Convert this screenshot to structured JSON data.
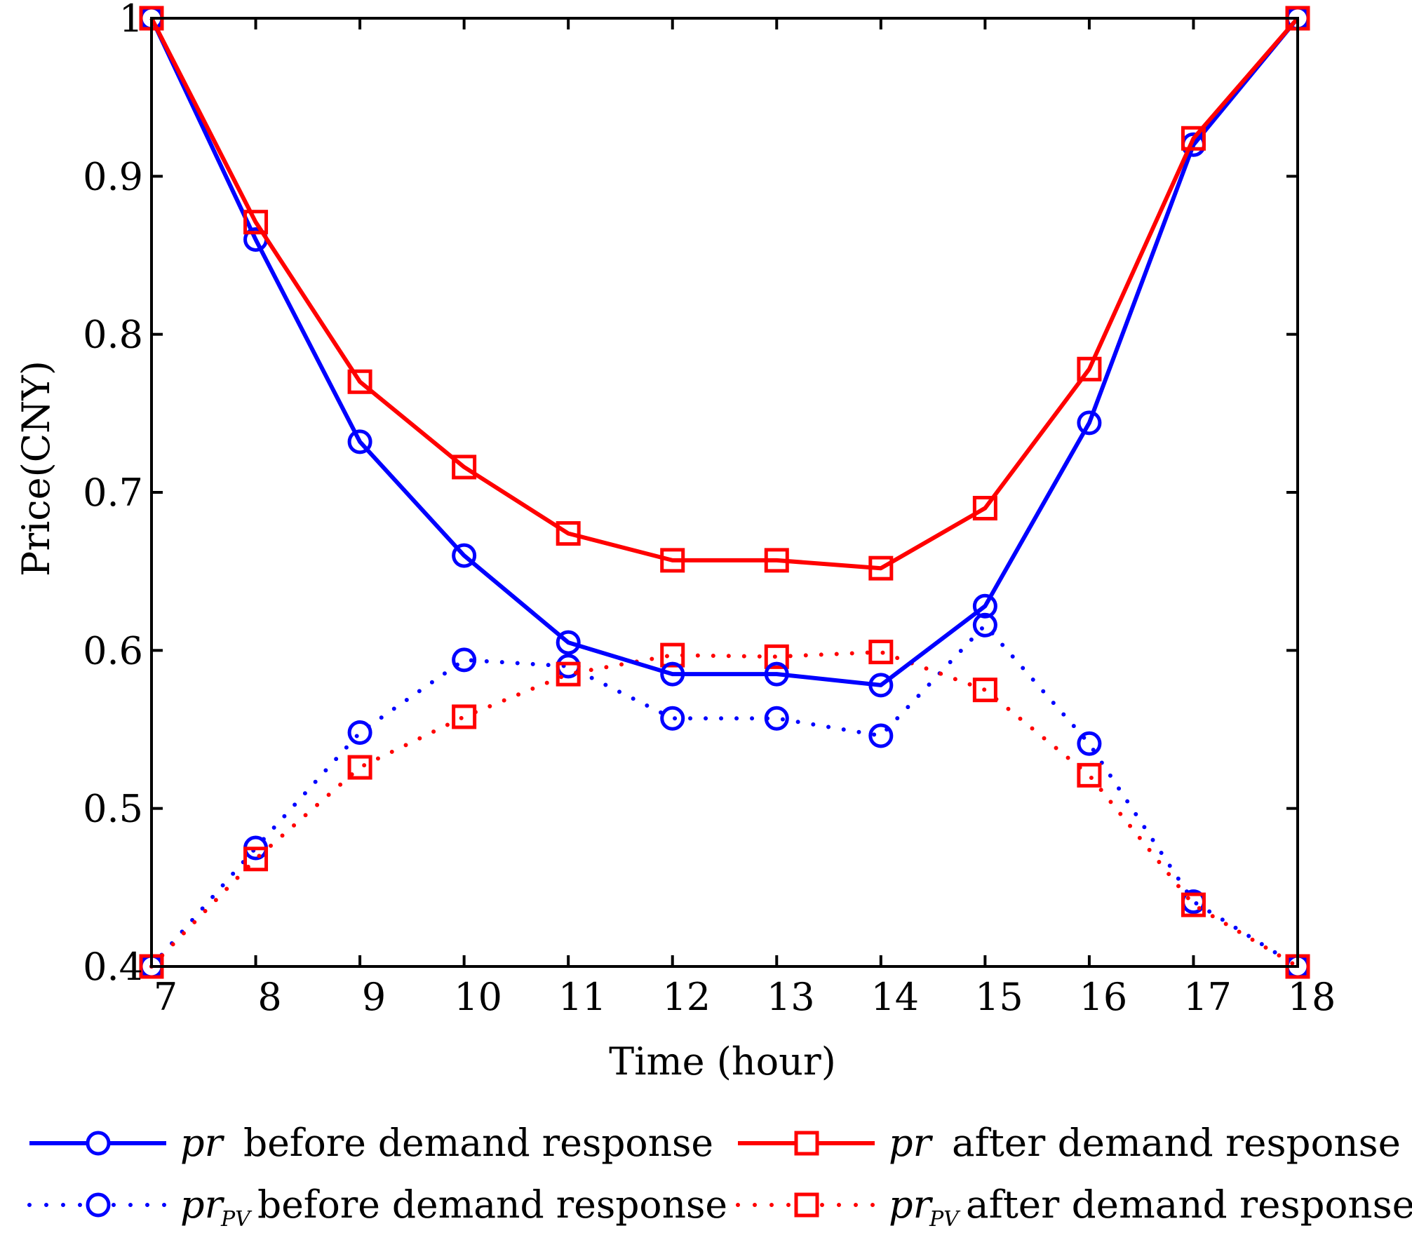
{
  "chart_data": {
    "type": "line",
    "xlabel": "Time (hour)",
    "ylabel": "Price(CNY)",
    "xlim": [
      7,
      18
    ],
    "ylim": [
      0.4,
      1.0
    ],
    "xticks": [
      7,
      8,
      9,
      10,
      11,
      12,
      13,
      14,
      15,
      16,
      17,
      18
    ],
    "xtick_labels": [
      "7",
      "8",
      "9",
      "10",
      "11",
      "12",
      "13",
      "14",
      "15",
      "16",
      "17",
      "18"
    ],
    "yticks": [
      0.4,
      0.5,
      0.6,
      0.7,
      0.8,
      0.9,
      1.0
    ],
    "ytick_labels": [
      "0.4",
      "0.5",
      "0.6",
      "0.7",
      "0.8",
      "0.9",
      "1"
    ],
    "x": [
      7,
      8,
      9,
      10,
      11,
      12,
      13,
      14,
      15,
      16,
      17,
      18
    ],
    "series": [
      {
        "name": "pr before demand response",
        "symbol": "pr",
        "subscript": "",
        "label": "before demand response",
        "color": "#0000ff",
        "line_style": "solid",
        "marker": "circle",
        "values": [
          1.0,
          0.86,
          0.732,
          0.66,
          0.605,
          0.585,
          0.585,
          0.578,
          0.628,
          0.744,
          0.92,
          1.0
        ]
      },
      {
        "name": "pr after demand response",
        "symbol": "pr",
        "subscript": "",
        "label": "after demand response",
        "color": "#ff0000",
        "line_style": "solid",
        "marker": "square",
        "values": [
          1.0,
          0.871,
          0.77,
          0.716,
          0.674,
          0.657,
          0.657,
          0.652,
          0.69,
          0.778,
          0.924,
          1.0
        ]
      },
      {
        "name": "prPV before demand response",
        "symbol": "pr",
        "subscript": "PV",
        "label": "before demand response",
        "color": "#0000ff",
        "line_style": "dotted",
        "marker": "circle",
        "values": [
          0.4,
          0.475,
          0.548,
          0.594,
          0.59,
          0.557,
          0.557,
          0.546,
          0.616,
          0.541,
          0.441,
          0.4
        ]
      },
      {
        "name": "prPV after demand response",
        "symbol": "pr",
        "subscript": "PV",
        "label": "after demand response",
        "color": "#ff0000",
        "line_style": "dotted",
        "marker": "square",
        "values": [
          0.4,
          0.468,
          0.526,
          0.558,
          0.585,
          0.597,
          0.596,
          0.599,
          0.575,
          0.521,
          0.439,
          0.4
        ]
      }
    ]
  }
}
